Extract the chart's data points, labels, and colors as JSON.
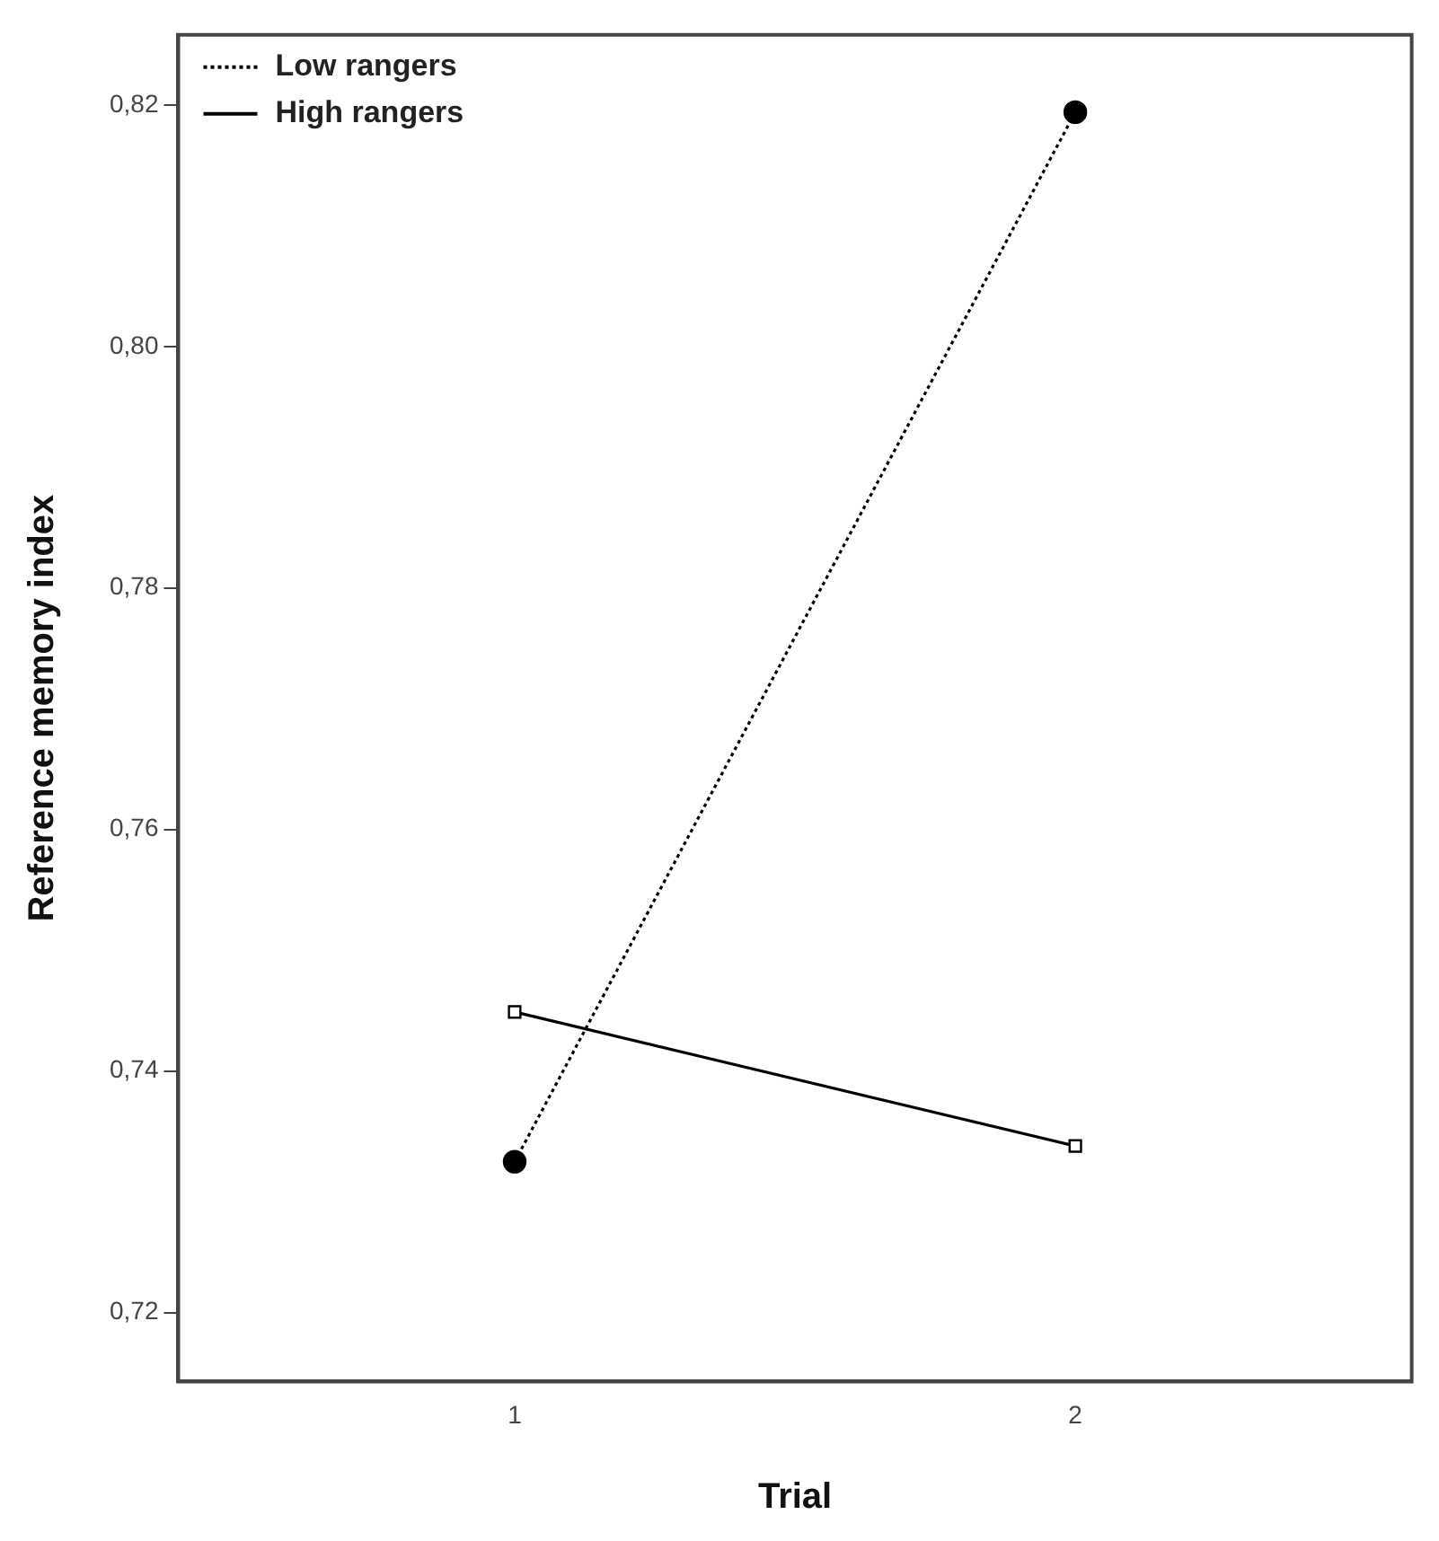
{
  "chart_data": {
    "type": "line",
    "xlabel": "Trial",
    "ylabel": "Reference memory index",
    "x": [
      1,
      2
    ],
    "xlim": [
      0.4,
      2.6
    ],
    "xticks": [
      1,
      2
    ],
    "series": [
      {
        "name": "Low rangers",
        "color": "#000000",
        "values": [
          0.7325,
          0.8194
        ],
        "line_style": "dotted",
        "marker": "circle"
      },
      {
        "name": "High rangers",
        "color": "#000000",
        "values": [
          0.7449,
          0.7338
        ],
        "line_style": "solid",
        "marker": "square"
      }
    ],
    "ylim": [
      0.7143,
      0.8258
    ],
    "yticks": [
      {
        "value": 0.72,
        "label": "0,72"
      },
      {
        "value": 0.74,
        "label": "0,74"
      },
      {
        "value": 0.76,
        "label": "0,76"
      },
      {
        "value": 0.78,
        "label": "0,78"
      },
      {
        "value": 0.8,
        "label": "0,80"
      },
      {
        "value": 0.82,
        "label": "0,82"
      }
    ],
    "grid": false,
    "legend": "top left"
  }
}
